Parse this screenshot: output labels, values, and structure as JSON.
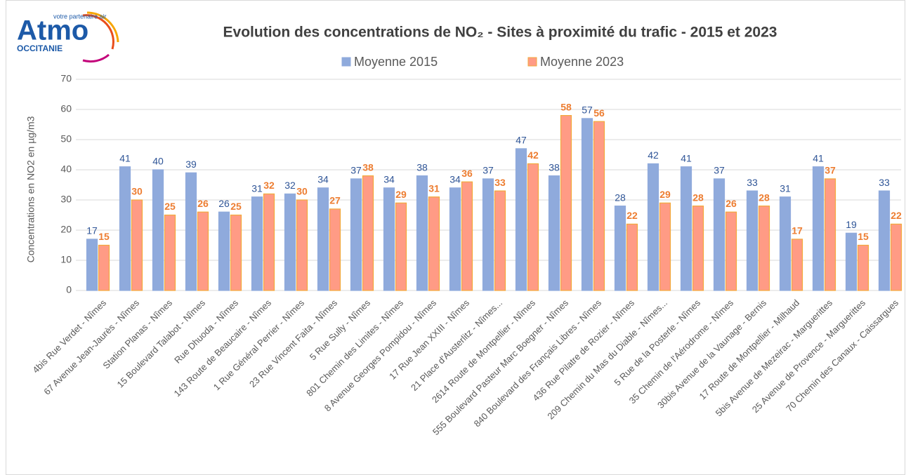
{
  "logo": {
    "name": "Atmo",
    "tagline": "votre partenaire air",
    "region": "OCCITANIE"
  },
  "chart_data": {
    "type": "bar",
    "title": "Evolution des concentrations de NO₂ - Sites à proximité du trafic - 2015 et 2023",
    "y_label": "Concentrations en NO2 en µg/m3",
    "categories": [
      "4bis Rue Verdet - Nîmes",
      "67 Avenue Jean-Jaurès - Nîmes",
      "Station Planas - Nîmes",
      "15 Boulevard Talabot - Nîmes",
      "Rue Dhuoda - Nîmes",
      "143 Route de Beaucaire - Nîmes",
      "1 Rue Général Perrier - Nîmes",
      "23 Rue Vincent Faita - Nîmes",
      "5 Rue Sully - Nîmes",
      "801 Chemin des Limites - Nîmes",
      "8 Avenue Georges Pompidou - Nîmes",
      "17 Rue Jean XXIII - Nîmes",
      "21 Place d'Austerlitz - Nîmes...",
      "2614 Route de Montpellier - Nîmes",
      "555 Boulevard Pasteur Marc Boegner - Nîmes",
      "840 Boulevard des Français Libres - Nîmes",
      "436 Rue Pilatre de Rozier - Nîmes",
      "209 Chemin du Mas du Diable - Nîmes...",
      "5 Rue de la Posterle - Nîmes",
      "35 Chemin de l'Aérodrome - Nîmes",
      "30bis Avenue de la Vaunage - Bernis",
      "17 Route de Montpellier - Milhaud",
      "5bis Avenue de Mezeirac - Marguerittes",
      "25 Avenue de Provence - Marguerittes",
      "70 Chemin des Canaux - Caissargues"
    ],
    "series": [
      {
        "name": "Moyenne 2015",
        "color": "#8faadc",
        "stroke": "#8faadc",
        "label_color": "#2f5597",
        "values": [
          17,
          41,
          40,
          39,
          26,
          31,
          32,
          34,
          37,
          34,
          38,
          34,
          37,
          47,
          38,
          57,
          28,
          42,
          41,
          37,
          33,
          31,
          41,
          19,
          33
        ]
      },
      {
        "name": "Moyenne 2023",
        "color": "#ff9b85",
        "stroke": "#f2a93b",
        "label_color": "#ed7d31",
        "values": [
          15,
          30,
          25,
          26,
          25,
          32,
          30,
          27,
          38,
          29,
          31,
          36,
          33,
          42,
          58,
          56,
          22,
          29,
          28,
          26,
          28,
          17,
          37,
          15,
          22
        ]
      }
    ],
    "ylim": [
      0,
      70
    ],
    "yticks": [
      0,
      10,
      20,
      30,
      40,
      50,
      60,
      70
    ],
    "grid": true,
    "legend": "top"
  }
}
